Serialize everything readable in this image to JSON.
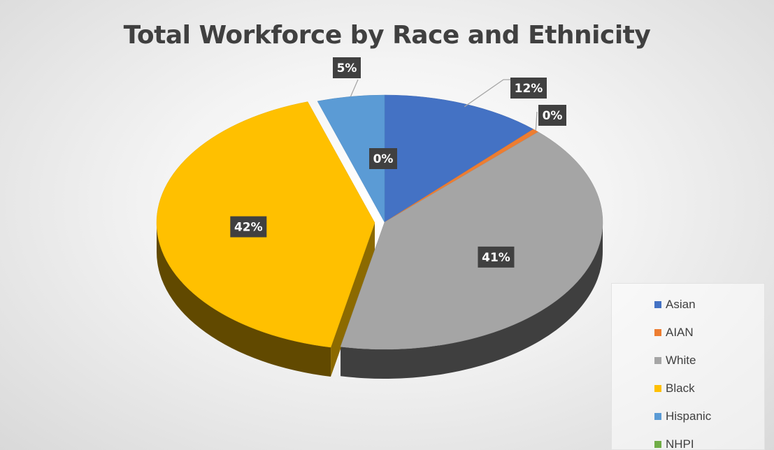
{
  "chart_data": {
    "type": "pie",
    "title": "Total Workforce by Race and Ethnicity",
    "legend_position": "bottom-right",
    "slices": [
      {
        "label": "Asian",
        "value": 12,
        "display": "12%",
        "color": "#4472C4"
      },
      {
        "label": "AIAN",
        "value": 0.5,
        "display": "0%",
        "color": "#ED7D31"
      },
      {
        "label": "White",
        "value": 41,
        "display": "41%",
        "color": "#A5A5A5"
      },
      {
        "label": "Black",
        "value": 42,
        "display": "42%",
        "color": "#FFC000"
      },
      {
        "label": "Hispanic",
        "value": 5,
        "display": "5%",
        "color": "#5B9BD5"
      },
      {
        "label": "NHPI",
        "value": 0,
        "display": "0%",
        "color": "#70AD47"
      }
    ]
  }
}
